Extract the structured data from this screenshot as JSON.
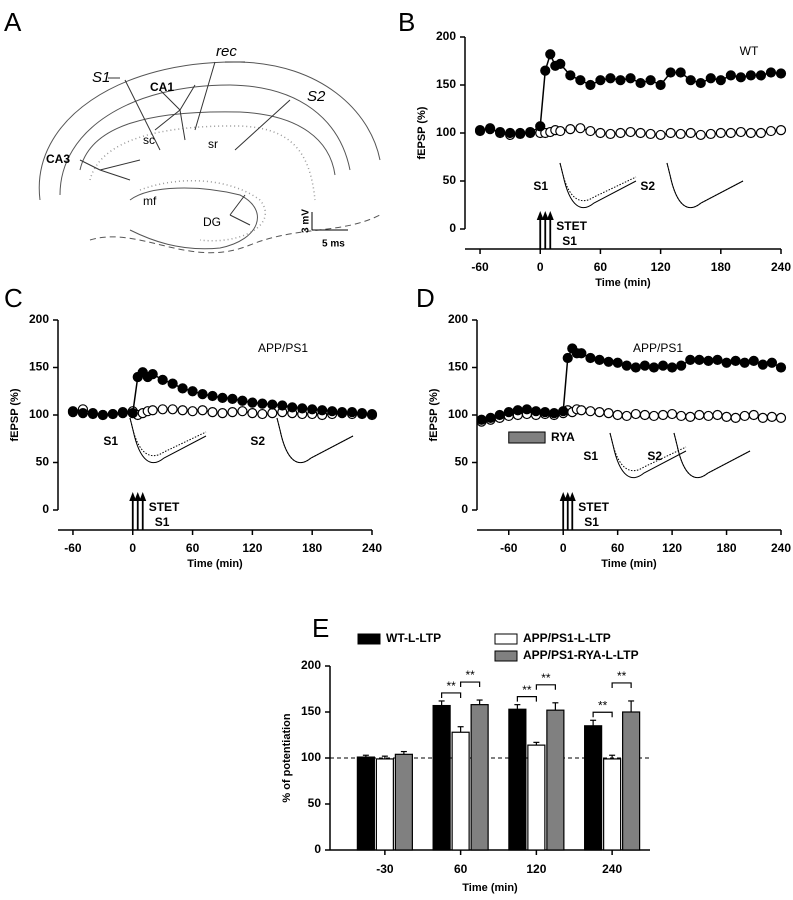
{
  "panel_a": {
    "panel_label": "A",
    "s1": "S1",
    "rec": "rec",
    "s2": "S2",
    "ca1": "CA1",
    "ca3": "CA3",
    "sc": "sc",
    "sr": "sr",
    "mf": "mf",
    "dg": "DG",
    "scale_v": "3 mV",
    "scale_t": "5 ms"
  },
  "chart_data": [
    {
      "type": "line",
      "panel_label": "B",
      "annotation": "WT",
      "x": [
        -60,
        -50,
        -40,
        -30,
        -20,
        -10,
        0,
        5,
        10,
        15,
        20,
        30,
        40,
        50,
        60,
        70,
        80,
        90,
        100,
        110,
        120,
        130,
        140,
        150,
        160,
        170,
        180,
        190,
        200,
        210,
        220,
        230,
        240
      ],
      "series": [
        {
          "color": "#000000",
          "values": [
            103,
            104,
            101,
            100,
            99,
            100,
            107,
            165,
            182,
            170,
            172,
            160,
            155,
            150,
            155,
            157,
            155,
            157,
            152,
            155,
            150,
            163,
            163,
            155,
            152,
            157,
            155,
            160,
            158,
            160,
            160,
            163,
            162
          ]
        },
        {
          "color": "#ffffff",
          "values": [
            102,
            105,
            100,
            98,
            100,
            101,
            100,
            100,
            101,
            103,
            102,
            104,
            105,
            102,
            100,
            99,
            100,
            101,
            100,
            99,
            98,
            100,
            99,
            100,
            98,
            99,
            100,
            100,
            101,
            100,
            100,
            102,
            103
          ]
        }
      ],
      "xlim": [
        -75,
        240
      ],
      "xticks": [
        -60,
        0,
        60,
        120,
        180,
        240
      ],
      "ylim": [
        0,
        200
      ],
      "yticks": [
        0,
        50,
        100,
        150,
        200
      ],
      "xlabel": "Time (min)",
      "ylabel": "fEPSP (%)",
      "stim_times": [
        0,
        5,
        10
      ],
      "stim_label": "STET",
      "stim_pathway": "S1",
      "trace_labels": [
        "S1",
        "S2"
      ]
    },
    {
      "type": "line",
      "panel_label": "C",
      "annotation": "APP/PS1",
      "x": [
        -60,
        -50,
        -40,
        -30,
        -20,
        -10,
        0,
        5,
        10,
        15,
        20,
        30,
        40,
        50,
        60,
        70,
        80,
        90,
        100,
        110,
        120,
        130,
        140,
        150,
        160,
        170,
        180,
        190,
        200,
        210,
        220,
        230,
        240
      ],
      "series": [
        {
          "color": "#000000",
          "values": [
            104,
            102,
            101,
            100,
            101,
            102,
            102,
            140,
            145,
            140,
            143,
            137,
            133,
            128,
            125,
            122,
            120,
            118,
            117,
            115,
            113,
            112,
            111,
            110,
            108,
            107,
            106,
            105,
            104,
            103,
            103,
            102,
            101
          ]
        },
        {
          "color": "#ffffff",
          "values": [
            103,
            106,
            102,
            100,
            101,
            103,
            104,
            100,
            102,
            104,
            105,
            106,
            106,
            105,
            104,
            105,
            103,
            102,
            103,
            104,
            102,
            101,
            102,
            103,
            102,
            101,
            101,
            100,
            101,
            102,
            101,
            101,
            100
          ]
        }
      ],
      "xlim": [
        -75,
        240
      ],
      "xticks": [
        -60,
        0,
        60,
        120,
        180,
        240
      ],
      "ylim": [
        0,
        200
      ],
      "yticks": [
        0,
        50,
        100,
        150,
        200
      ],
      "xlabel": "Time (min)",
      "ylabel": "fEPSP (%)",
      "stim_times": [
        0,
        5,
        10
      ],
      "stim_label": "STET",
      "stim_pathway": "S1",
      "trace_labels": [
        "S1",
        "S2"
      ]
    },
    {
      "type": "line",
      "panel_label": "D",
      "annotation": "APP/PS1",
      "x": [
        -90,
        -80,
        -70,
        -60,
        -50,
        -40,
        -30,
        -20,
        -10,
        0,
        5,
        10,
        15,
        20,
        30,
        40,
        50,
        60,
        70,
        80,
        90,
        100,
        110,
        120,
        130,
        140,
        150,
        160,
        170,
        180,
        190,
        200,
        210,
        220,
        230,
        240
      ],
      "series": [
        {
          "color": "#000000",
          "values": [
            95,
            97,
            100,
            103,
            105,
            106,
            104,
            103,
            102,
            104,
            160,
            170,
            165,
            165,
            160,
            158,
            156,
            155,
            152,
            150,
            152,
            150,
            152,
            150,
            152,
            158,
            158,
            157,
            158,
            155,
            157,
            155,
            157,
            153,
            155,
            150
          ]
        },
        {
          "color": "#ffffff",
          "values": [
            93,
            95,
            97,
            99,
            100,
            101,
            100,
            101,
            100,
            102,
            105,
            103,
            106,
            105,
            104,
            103,
            102,
            100,
            99,
            101,
            100,
            99,
            100,
            101,
            99,
            98,
            100,
            99,
            100,
            98,
            97,
            99,
            100,
            97,
            98,
            97
          ]
        }
      ],
      "xlim": [
        -95,
        240
      ],
      "xticks": [
        -60,
        0,
        60,
        120,
        180,
        240
      ],
      "ylim": [
        0,
        200
      ],
      "yticks": [
        0,
        50,
        100,
        150,
        200
      ],
      "xlabel": "Time (min)",
      "ylabel": "fEPSP (%)",
      "stim_times": [
        0,
        5,
        10
      ],
      "stim_label": "STET",
      "stim_pathway": "S1",
      "trace_labels": [
        "S1",
        "S2"
      ],
      "drug_label": "RYA",
      "drug_span": [
        -60,
        -20
      ]
    },
    {
      "type": "bar",
      "panel_label": "E",
      "categories": [
        "-30",
        "60",
        "120",
        "240"
      ],
      "series": [
        {
          "name": "WT-L-LTP",
          "color": "#000000",
          "values": [
            101,
            157,
            153,
            135
          ],
          "errors": [
            2,
            5,
            5,
            6
          ]
        },
        {
          "name": "APP/PS1-L-LTP",
          "color": "#ffffff",
          "values": [
            99,
            128,
            114,
            99
          ],
          "errors": [
            3,
            6,
            3,
            4
          ]
        },
        {
          "name": "APP/PS1-RYA-L-LTP",
          "color": "#808080",
          "values": [
            104,
            158,
            152,
            150
          ],
          "errors": [
            3,
            5,
            8,
            12
          ]
        }
      ],
      "ylim": [
        0,
        200
      ],
      "yticks": [
        0,
        50,
        100,
        150,
        200
      ],
      "xlabel": "Time (min)",
      "ylabel": "% of potentiation",
      "reference_line": 100,
      "legend": "top",
      "significance_labels": [
        "**",
        "**",
        "**",
        "**",
        "**",
        "**"
      ]
    }
  ]
}
